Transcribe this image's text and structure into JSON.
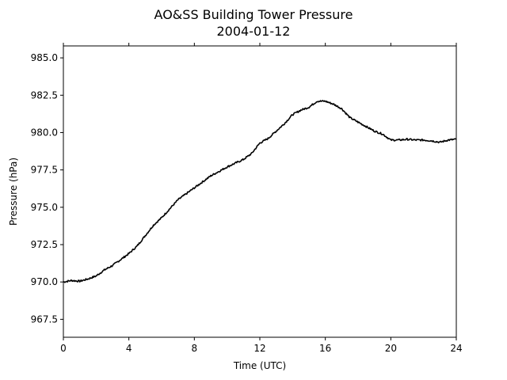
{
  "chart_data": {
    "type": "line",
    "title": "AO&SS Building Tower Pressure",
    "subtitle": "2004-01-12",
    "xlabel": "Time (UTC)",
    "ylabel": "Pressure (hPa)",
    "xlim": [
      0,
      24
    ],
    "ylim": [
      966.3,
      985.8
    ],
    "xticks": [
      0,
      4,
      8,
      12,
      16,
      20,
      24
    ],
    "yticks": [
      967.5,
      970.0,
      972.5,
      975.0,
      977.5,
      980.0,
      982.5,
      985.0
    ],
    "ytick_labels": [
      "967.5",
      "970.0",
      "972.5",
      "975.0",
      "977.5",
      "980.0",
      "982.5",
      "985.0"
    ],
    "grid": false,
    "series": [
      {
        "color": "#000000",
        "x": [
          0,
          0.5,
          1,
          1.5,
          2,
          2.5,
          3,
          3.5,
          4,
          4.5,
          5,
          5.5,
          6,
          6.5,
          7,
          7.5,
          8,
          8.5,
          9,
          9.5,
          10,
          10.5,
          11,
          11.5,
          12,
          12.5,
          13,
          13.5,
          14,
          14.5,
          15,
          15.5,
          16,
          16.5,
          17,
          17.5,
          18,
          18.5,
          19,
          19.5,
          20,
          20.5,
          21,
          21.5,
          22,
          22.5,
          23,
          23.5,
          24
        ],
        "y": [
          970.0,
          970.1,
          970.05,
          970.2,
          970.4,
          970.8,
          971.1,
          971.5,
          971.9,
          972.4,
          973.1,
          973.8,
          974.3,
          974.9,
          975.5,
          975.9,
          976.3,
          976.7,
          977.1,
          977.4,
          977.7,
          977.95,
          978.2,
          978.6,
          979.3,
          979.6,
          980.1,
          980.6,
          981.2,
          981.5,
          981.7,
          982.1,
          982.1,
          981.9,
          981.6,
          981.0,
          980.7,
          980.4,
          980.1,
          979.9,
          979.5,
          979.5,
          979.55,
          979.5,
          979.5,
          979.45,
          979.35,
          979.5,
          979.55
        ]
      }
    ]
  }
}
